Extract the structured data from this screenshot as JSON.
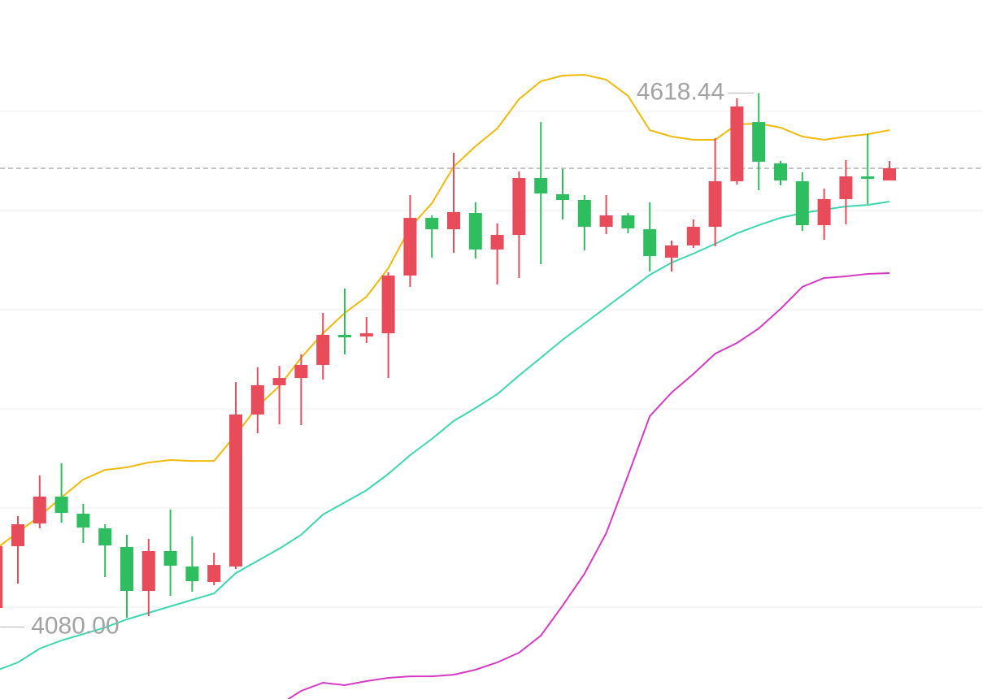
{
  "chart_data": {
    "type": "candlestick",
    "ylim": [
      4007.4,
      4712.3
    ],
    "gridlines": [
      4100,
      4200,
      4300,
      4400,
      4500,
      4600
    ],
    "last_price": 4542.6,
    "up_color": "#e84b5a",
    "down_color": "#2ebd5f",
    "open": [
      4099.2,
      4161.5,
      4184.4,
      4211.5,
      4194.3,
      4179.5,
      4160.7,
      4116.4,
      4156.6,
      4141.0,
      4125.4,
      4141.0,
      4294.3,
      4323.8,
      4331.1,
      4344.3,
      4374.6,
      4373.0,
      4376.2,
      4434.4,
      4492.6,
      4481.1,
      4497.5,
      4460.7,
      4475.4,
      4532.8,
      4516.4,
      4510.7,
      4483.6,
      4495.1,
      4481.1,
      4452.5,
      4464.8,
      4483.6,
      4529.5,
      4589.3,
      4547.5,
      4529.5,
      4485.2,
      4511.5,
      4534.4,
      4530.3
    ],
    "high": [
      4167.2,
      4191.8,
      4232.8,
      4245.1,
      4204.1,
      4183.6,
      4173.0,
      4168.9,
      4198.4,
      4171.3,
      4154.9,
      4327.0,
      4341.8,
      4343.4,
      4354.9,
      4396.7,
      4421.3,
      4392.6,
      4437.7,
      4515.6,
      4495.1,
      4558.2,
      4508.2,
      4486.9,
      4539.3,
      4589.3,
      4541.8,
      4515.6,
      4515.6,
      4497.5,
      4508.2,
      4469.7,
      4491.0,
      4573.0,
      4613.1,
      4618.44,
      4550.0,
      4538.5,
      4522.1,
      4550.8,
      4577.0,
      4550.0
    ],
    "low": [
      4080.0,
      4123.8,
      4179.5,
      4185.2,
      4164.8,
      4130.3,
      4089.3,
      4091.0,
      4111.5,
      4115.6,
      4122.1,
      4138.5,
      4275.4,
      4284.4,
      4283.6,
      4329.5,
      4354.9,
      4366.4,
      4331.1,
      4423.0,
      4452.5,
      4457.4,
      4451.6,
      4425.4,
      4432.0,
      4445.9,
      4491.0,
      4459.8,
      4476.2,
      4477.0,
      4438.5,
      4438.5,
      4462.3,
      4463.9,
      4526.2,
      4520.5,
      4525.4,
      4479.5,
      4470.5,
      4486.1,
      4506.6,
      4530.3
    ],
    "close": [
      4161.5,
      4183.6,
      4211.5,
      4195.1,
      4180.3,
      4162.3,
      4116.4,
      4156.6,
      4141.8,
      4126.2,
      4142.6,
      4294.3,
      4323.8,
      4331.1,
      4344.3,
      4374.6,
      4373.0,
      4376.2,
      4434.4,
      4492.6,
      4481.1,
      4498.4,
      4460.7,
      4475.4,
      4532.8,
      4517.2,
      4510.7,
      4483.6,
      4495.1,
      4482.0,
      4454.1,
      4464.8,
      4483.6,
      4529.5,
      4604.9,
      4549.2,
      4530.3,
      4485.2,
      4511.5,
      4534.4,
      4532.0,
      4542.6
    ],
    "series": [
      {
        "color": "#f0b90b",
        "values": [
          4159.0,
          4175.4,
          4191.8,
          4210.7,
          4228.7,
          4238.5,
          4241.0,
          4245.9,
          4248.4,
          4247.5,
          4247.5,
          4273.8,
          4302.5,
          4323.0,
          4351.6,
          4376.2,
          4396.7,
          4413.1,
          4441.8,
          4482.8,
          4507.4,
          4544.3,
          4564.8,
          4582.8,
          4612.3,
          4630.3,
          4636.1,
          4636.9,
          4632.0,
          4615.6,
          4581.1,
          4574.6,
          4571.3,
          4571.3,
          4586.9,
          4587.7,
          4583.6,
          4574.6,
          4571.3,
          4574.6,
          4577.0,
          4581.1
        ]
      },
      {
        "color": "#3dd6b0",
        "values": [
          4036.0,
          4044.3,
          4058.2,
          4066.4,
          4072.9,
          4079.5,
          4087.7,
          4094.3,
          4100.8,
          4107.4,
          4113.9,
          4134.4,
          4146.7,
          4159.0,
          4173.0,
          4193.4,
          4205.7,
          4218.0,
          4234.4,
          4253.3,
          4269.7,
          4287.7,
          4300.8,
          4314.8,
          4333.6,
          4351.6,
          4369.7,
          4386.1,
          4402.5,
          4418.9,
          4435.2,
          4447.5,
          4456.6,
          4466.4,
          4477.0,
          4485.2,
          4492.6,
          4497.5,
          4500.8,
          4504.1,
          4505.7,
          4509.0
        ]
      },
      {
        "color": "#d63bc4",
        "values": [
          null,
          null,
          null,
          null,
          null,
          null,
          null,
          null,
          null,
          null,
          null,
          null,
          null,
          4001.6,
          4015.6,
          4023.8,
          4021.3,
          4025.4,
          4028.7,
          4030.3,
          4030.3,
          4031.9,
          4036.9,
          4044.3,
          4054.1,
          4071.3,
          4101.6,
          4133.6,
          4174.6,
          4232.8,
          4292.6,
          4316.4,
          4335.2,
          4355.7,
          4366.4,
          4381.1,
          4400.8,
          4423.0,
          4432.0,
          4433.6,
          4436.1,
          4436.9
        ]
      }
    ],
    "annotations": [
      {
        "label": "4618.44",
        "value": 4618.44,
        "index": 35,
        "side": "left"
      },
      {
        "label": "4080.00",
        "value": 4080.0,
        "index": 0,
        "side": "right"
      }
    ]
  }
}
